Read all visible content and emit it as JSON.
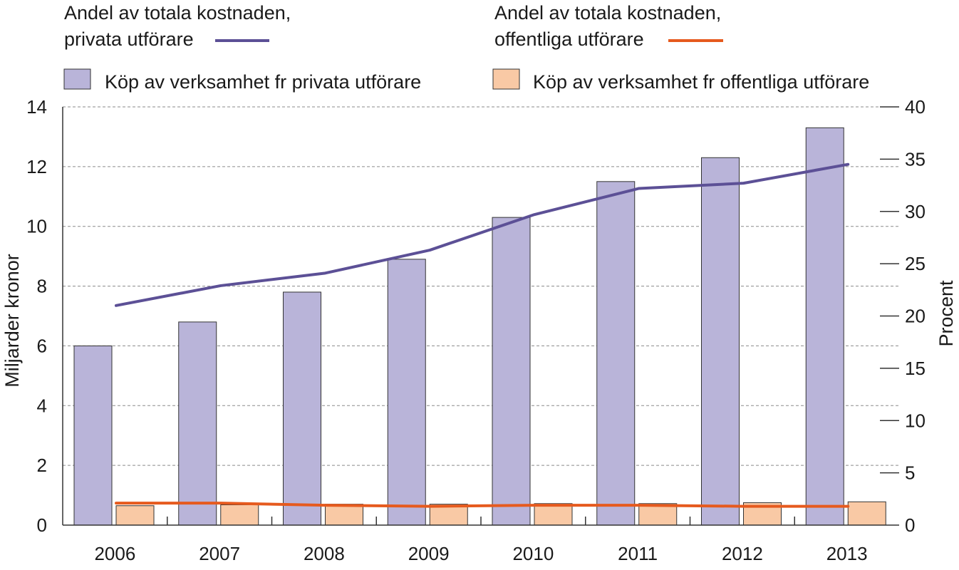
{
  "chart_data": {
    "type": "bar",
    "categories": [
      "2006",
      "2007",
      "2008",
      "2009",
      "2010",
      "2011",
      "2012",
      "2013"
    ],
    "series": [
      {
        "name": "Köp av verksamhet fr privata utförare",
        "kind": "bar",
        "axis": "left",
        "color": "#b9b4d9",
        "values": [
          6.0,
          6.8,
          7.8,
          8.9,
          10.3,
          11.5,
          12.3,
          13.3
        ]
      },
      {
        "name": "Köp av verksamhet fr offentliga utförare",
        "kind": "bar",
        "axis": "left",
        "color": "#f9c9a5",
        "values": [
          0.65,
          0.68,
          0.7,
          0.7,
          0.72,
          0.72,
          0.75,
          0.78
        ]
      },
      {
        "name": "Andel av totala kostnaden, privata utförare",
        "kind": "line",
        "axis": "right",
        "color": "#5c5096",
        "values": [
          21,
          22.9,
          24.1,
          26.3,
          29.7,
          32.2,
          32.7,
          34.5
        ]
      },
      {
        "name": "Andel av totala kostnaden, offentliga utförare",
        "kind": "line",
        "axis": "right",
        "color": "#e65a1e",
        "values": [
          2.1,
          2.1,
          1.9,
          1.8,
          1.9,
          1.9,
          1.8,
          1.8
        ]
      }
    ],
    "legend": {
      "line_private": [
        "Andel av totala kostnaden,",
        "privata utförare"
      ],
      "line_public": [
        "Andel av totala kostnaden,",
        "offentliga utförare"
      ],
      "bar_private": "Köp av verksamhet fr privata utförare",
      "bar_public": "Köp av verksamhet fr offentliga utförare"
    },
    "ylabel": "Miljarder kronor",
    "y2label": "Procent",
    "ylim": [
      0,
      14
    ],
    "yticks": [
      0,
      2,
      4,
      6,
      8,
      10,
      12,
      14
    ],
    "y2lim": [
      0,
      40
    ],
    "y2ticks": [
      0,
      5,
      10,
      15,
      20,
      25,
      30,
      35,
      40
    ],
    "grid": "horizontal dashed",
    "legend_position": "top"
  }
}
